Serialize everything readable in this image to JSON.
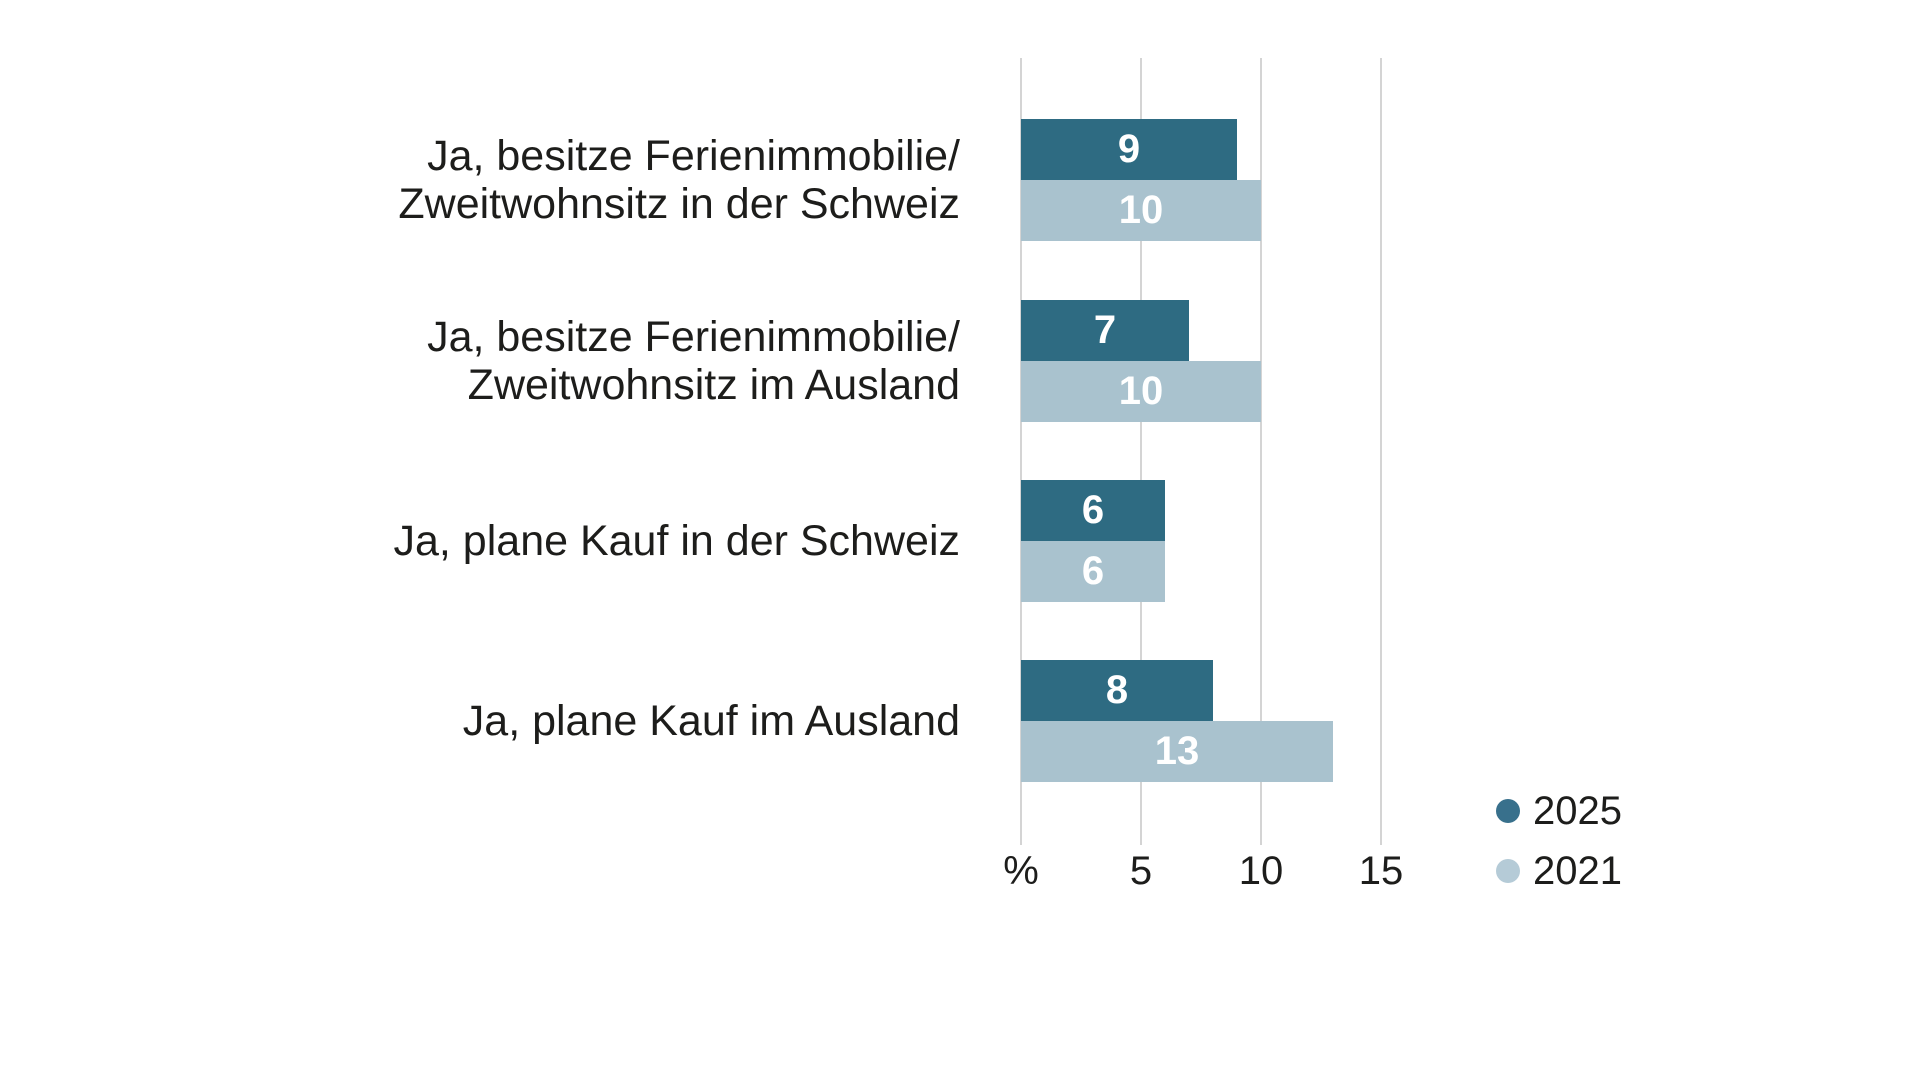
{
  "chart_data": {
    "type": "bar",
    "orientation": "horizontal",
    "title": "",
    "xlabel": "%",
    "ylabel": "",
    "xlim": [
      0,
      17.5
    ],
    "grid": true,
    "legend_position": "bottom-right",
    "x_ticks": [
      "%",
      "5",
      "10",
      "15"
    ],
    "x_tick_values": [
      0,
      5,
      10,
      15
    ],
    "categories": [
      "Ja, besitze Ferienimmobilie/ Zweitwohnsitz in der Schweiz",
      "Ja, besitze Ferienimmobilie/ Zweitwohnsitz im Ausland",
      "Ja, plane Kauf in der Schweiz",
      "Ja, plane Kauf im Ausland"
    ],
    "category_lines": [
      [
        "Ja, besitze Ferienimmobilie/",
        "Zweitwohnsitz in der Schweiz"
      ],
      [
        "Ja, besitze Ferienimmobilie/",
        "Zweitwohnsitz im Ausland"
      ],
      [
        "Ja, plane Kauf in der Schweiz"
      ],
      [
        "Ja, plane Kauf im Ausland"
      ]
    ],
    "series": [
      {
        "name": "2025",
        "color": "#2e6b82",
        "values": [
          9,
          7,
          6,
          8
        ]
      },
      {
        "name": "2021",
        "color": "#a9c2ce",
        "values": [
          10,
          10,
          6,
          13
        ]
      }
    ],
    "value_label_color": "#ffffff",
    "gridline_color": "#d4d4d4",
    "text_color": "#1d1d1b"
  },
  "legend": {
    "items": [
      {
        "label": "2025",
        "color": "#38708c"
      },
      {
        "label": "2021",
        "color": "#b5cbd7"
      }
    ]
  }
}
